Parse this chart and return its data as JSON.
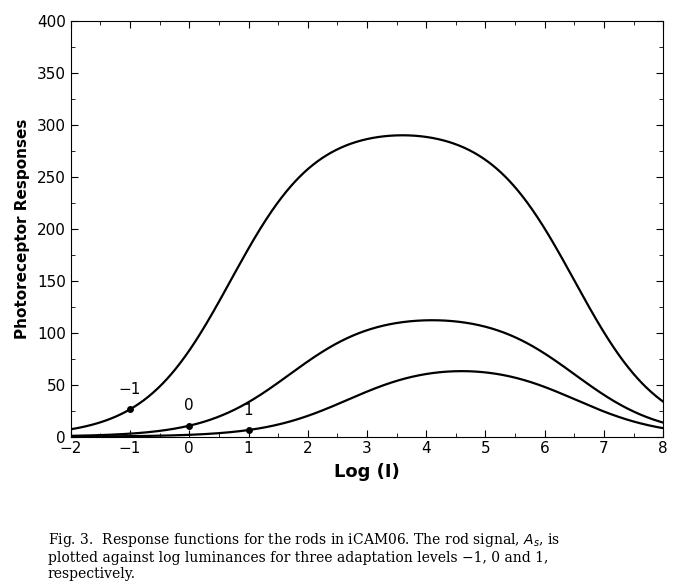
{
  "xlabel": "Log (I)",
  "ylabel": "Photoreceptor Responses",
  "xlim": [
    -2,
    8
  ],
  "ylim": [
    0,
    400
  ],
  "xticks": [
    -2,
    -1,
    0,
    1,
    2,
    3,
    4,
    5,
    6,
    7,
    8
  ],
  "yticks": [
    0,
    50,
    100,
    150,
    200,
    250,
    300,
    350,
    400
  ],
  "adaptation_levels": [
    -1,
    0,
    1
  ],
  "adapt_labels": {
    "-1": "−1",
    "0": "0",
    "1": "1"
  },
  "line_color": "#000000",
  "line_width": 1.6,
  "dot_size": 5.0,
  "caption": "Fig. 3.  Response functions for the rods in iCAM06. The rod signal, $A_s$, is\nplotted against log luminances for three adaptation levels −1, 0 and 1,\nrespectively.",
  "background_color": "#ffffff",
  "xlabel_fontsize": 13,
  "ylabel_fontsize": 11,
  "tick_labelsize": 11,
  "label_fontsize": 11,
  "caption_fontsize": 10,
  "adapt_label_yoffset": 12
}
